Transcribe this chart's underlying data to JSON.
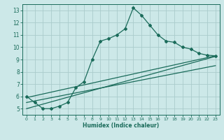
{
  "xlabel": "Humidex (Indice chaleur)",
  "bg_color": "#cce8e8",
  "grid_color": "#aacccc",
  "line_color": "#1a6b5a",
  "xlim": [
    -0.5,
    23.5
  ],
  "ylim": [
    4.5,
    13.5
  ],
  "xticks": [
    0,
    1,
    2,
    3,
    4,
    5,
    6,
    7,
    8,
    9,
    10,
    11,
    12,
    13,
    14,
    15,
    16,
    17,
    18,
    19,
    20,
    21,
    22,
    23
  ],
  "yticks": [
    5,
    6,
    7,
    8,
    9,
    10,
    11,
    12,
    13
  ],
  "line1_x": [
    0,
    1,
    2,
    3,
    4,
    5,
    6,
    7,
    8,
    9,
    10,
    11,
    12,
    13,
    14,
    15,
    16,
    17,
    18,
    19,
    20,
    21,
    22,
    23
  ],
  "line1_y": [
    6.0,
    5.5,
    5.0,
    5.0,
    5.2,
    5.5,
    6.7,
    7.2,
    9.0,
    10.5,
    10.7,
    11.0,
    11.5,
    13.2,
    12.6,
    11.8,
    11.0,
    10.5,
    10.4,
    10.0,
    9.85,
    9.5,
    9.35,
    9.3
  ],
  "line2_x": [
    0,
    23
  ],
  "line2_y": [
    5.9,
    9.3
  ],
  "line3_x": [
    0,
    23
  ],
  "line3_y": [
    5.5,
    8.5
  ],
  "line4_x": [
    0,
    23
  ],
  "line4_y": [
    5.0,
    9.25
  ]
}
